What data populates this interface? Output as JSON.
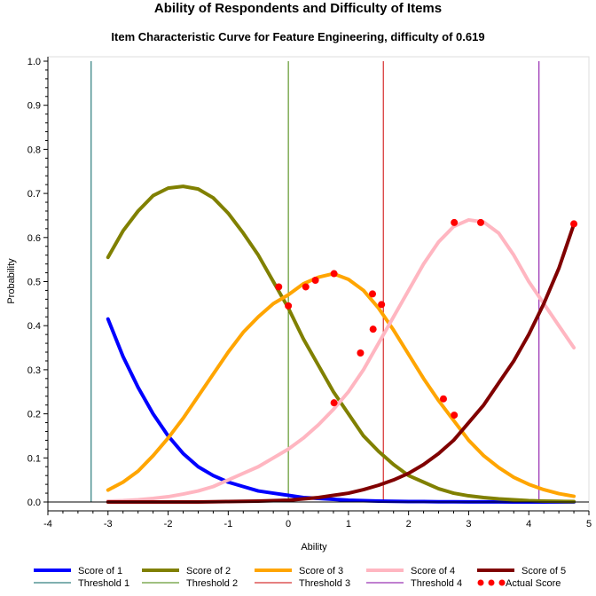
{
  "chart_data": {
    "type": "line",
    "title": "Ability of Respondents and Difficulty of Items",
    "subtitle": "Item Characteristic Curve for Feature Engineering, difficulty of 0.619",
    "xlabel": "Ability",
    "ylabel": "Probability",
    "xlim": [
      -4,
      5
    ],
    "ylim": [
      0,
      1
    ],
    "x_ticks": [
      "-4",
      "-3",
      "-2",
      "-1",
      "0",
      "1",
      "2",
      "3",
      "4",
      "5"
    ],
    "y_ticks": [
      "0.0",
      "0.1",
      "0.2",
      "0.3",
      "0.4",
      "0.5",
      "0.6",
      "0.7",
      "0.8",
      "0.9",
      "1.0"
    ],
    "grid": false,
    "legend_position": "bottom",
    "x": [
      -3.0,
      -2.75,
      -2.5,
      -2.25,
      -2.0,
      -1.75,
      -1.5,
      -1.25,
      -1.0,
      -0.75,
      -0.5,
      -0.25,
      0.0,
      0.25,
      0.5,
      0.75,
      1.0,
      1.25,
      1.5,
      1.75,
      2.0,
      2.25,
      2.5,
      2.75,
      3.0,
      3.25,
      3.5,
      3.75,
      4.0,
      4.25,
      4.5,
      4.75
    ],
    "series": [
      {
        "name": "Score of 1",
        "color": "#0000ff",
        "values": [
          0.415,
          0.33,
          0.26,
          0.2,
          0.15,
          0.11,
          0.08,
          0.06,
          0.045,
          0.035,
          0.025,
          0.02,
          0.015,
          0.01,
          0.008,
          0.006,
          0.004,
          0.003,
          0.002,
          0.0015,
          0.001,
          0.001,
          0.0005,
          0.0005,
          0.0003,
          0.0002,
          0.0002,
          0.0001,
          0.0001,
          0.0001,
          0.0,
          0.0
        ]
      },
      {
        "name": "Score of 2",
        "color": "#808000",
        "values": [
          0.555,
          0.615,
          0.66,
          0.695,
          0.712,
          0.716,
          0.71,
          0.69,
          0.655,
          0.61,
          0.56,
          0.5,
          0.44,
          0.37,
          0.31,
          0.25,
          0.2,
          0.15,
          0.115,
          0.085,
          0.06,
          0.045,
          0.03,
          0.02,
          0.014,
          0.01,
          0.007,
          0.005,
          0.003,
          0.002,
          0.0015,
          0.001
        ]
      },
      {
        "name": "Score of 3",
        "color": "#ffa500",
        "values": [
          0.027,
          0.045,
          0.07,
          0.105,
          0.145,
          0.19,
          0.24,
          0.29,
          0.34,
          0.385,
          0.42,
          0.45,
          0.47,
          0.495,
          0.51,
          0.518,
          0.505,
          0.48,
          0.44,
          0.39,
          0.335,
          0.28,
          0.23,
          0.185,
          0.14,
          0.105,
          0.078,
          0.056,
          0.04,
          0.028,
          0.019,
          0.013
        ]
      },
      {
        "name": "Score of 4",
        "color": "#ffb6c1",
        "values": [
          0.002,
          0.003,
          0.005,
          0.008,
          0.012,
          0.018,
          0.025,
          0.035,
          0.05,
          0.065,
          0.08,
          0.1,
          0.12,
          0.145,
          0.175,
          0.21,
          0.25,
          0.3,
          0.36,
          0.42,
          0.48,
          0.54,
          0.59,
          0.625,
          0.64,
          0.635,
          0.61,
          0.56,
          0.5,
          0.45,
          0.4,
          0.35
        ]
      },
      {
        "name": "Score of 5",
        "color": "#800000",
        "values": [
          0.0,
          0.0,
          0.0,
          0.0,
          0.0,
          0.0,
          0.0,
          0.0005,
          0.001,
          0.0015,
          0.002,
          0.003,
          0.004,
          0.007,
          0.01,
          0.015,
          0.02,
          0.028,
          0.038,
          0.05,
          0.065,
          0.085,
          0.11,
          0.14,
          0.18,
          0.22,
          0.27,
          0.32,
          0.38,
          0.45,
          0.53,
          0.63
        ]
      }
    ],
    "thresholds": [
      {
        "name": "Threshold 1",
        "color": "#006060",
        "x": -3.28
      },
      {
        "name": "Threshold 2",
        "color": "#408000",
        "x": 0.0
      },
      {
        "name": "Threshold 3",
        "color": "#cc0000",
        "x": 1.58
      },
      {
        "name": "Threshold 4",
        "color": "#8000a0",
        "x": 4.17
      }
    ],
    "actual_scores": {
      "name": "Actual Score",
      "color": "#ff0000",
      "points": [
        {
          "x": -0.16,
          "y": 0.488
        },
        {
          "x": 0.0,
          "y": 0.445
        },
        {
          "x": 0.29,
          "y": 0.488
        },
        {
          "x": 0.45,
          "y": 0.503
        },
        {
          "x": 0.76,
          "y": 0.518
        },
        {
          "x": 0.76,
          "y": 0.225
        },
        {
          "x": 1.2,
          "y": 0.338
        },
        {
          "x": 1.4,
          "y": 0.472
        },
        {
          "x": 1.41,
          "y": 0.392
        },
        {
          "x": 1.55,
          "y": 0.448
        },
        {
          "x": 2.58,
          "y": 0.234
        },
        {
          "x": 2.76,
          "y": 0.197
        },
        {
          "x": 2.76,
          "y": 0.634
        },
        {
          "x": 3.2,
          "y": 0.634
        },
        {
          "x": 4.75,
          "y": 0.631
        }
      ]
    }
  }
}
